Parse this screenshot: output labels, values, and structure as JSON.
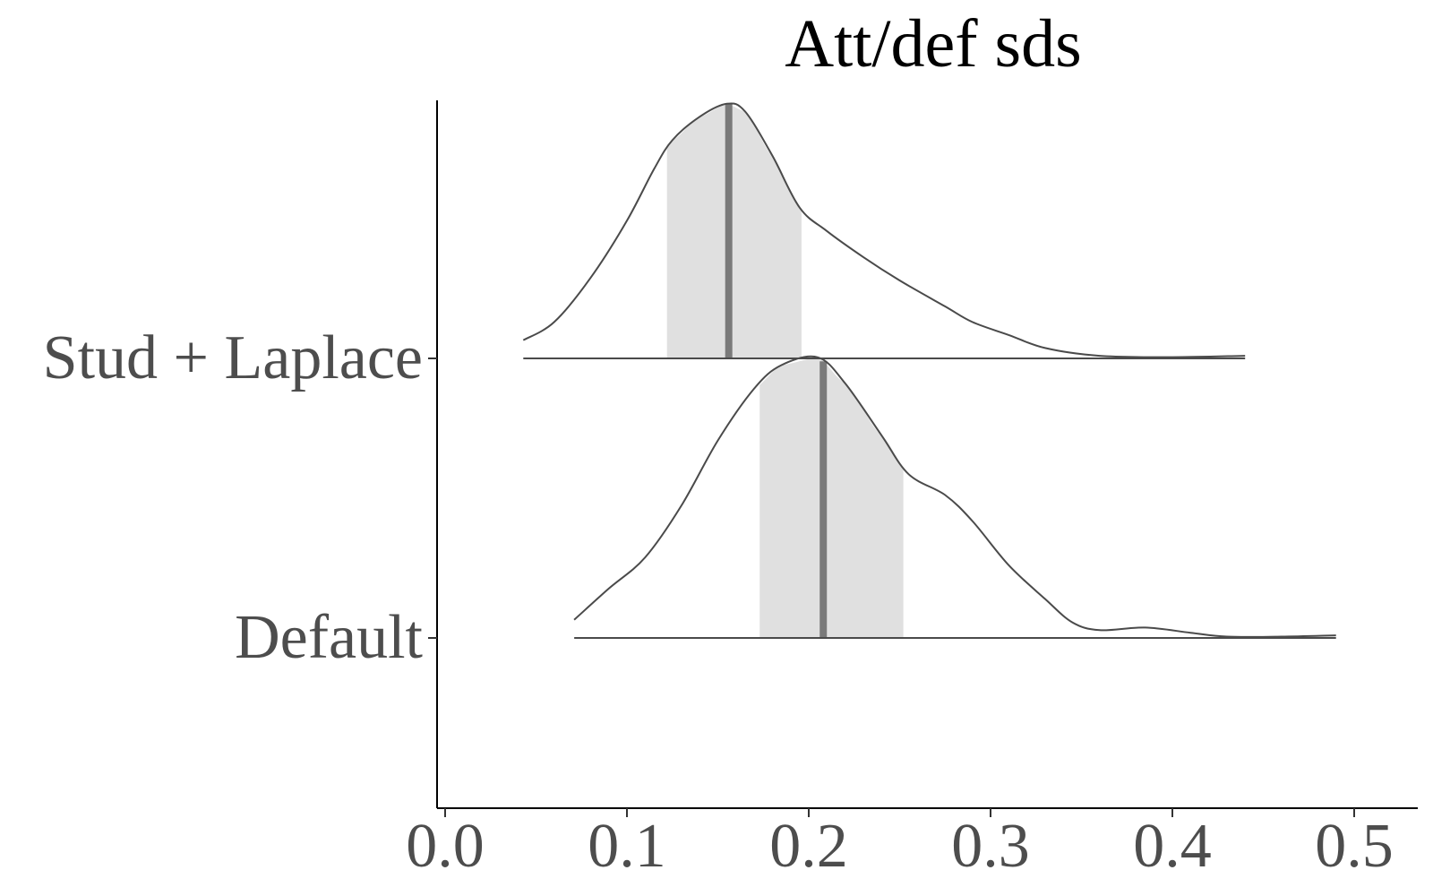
{
  "chart_data": {
    "type": "area",
    "title": "Att/def sds",
    "xlabel": "",
    "ylabel": "",
    "xlim": [
      -0.005,
      0.535
    ],
    "x_ticks": [
      0.0,
      0.1,
      0.2,
      0.3,
      0.4,
      0.5
    ],
    "x_tick_labels": [
      "0.0",
      "0.1",
      "0.2",
      "0.3",
      "0.4",
      "0.5"
    ],
    "y_categories": [
      "Stud + Laplace",
      "Default"
    ],
    "grid": false,
    "legend": "none",
    "line_color": "#4a4a4a",
    "interval_color": "#e0e0e0",
    "median_color": "#7a7a7a",
    "series": [
      {
        "category": "Stud + Laplace",
        "median": 0.156,
        "interval": [
          0.122,
          0.196
        ],
        "density": [
          [
            0.043,
            0.07
          ],
          [
            0.06,
            0.14
          ],
          [
            0.08,
            0.31
          ],
          [
            0.1,
            0.53
          ],
          [
            0.115,
            0.73
          ],
          [
            0.125,
            0.84
          ],
          [
            0.14,
            0.93
          ],
          [
            0.155,
            0.98
          ],
          [
            0.165,
            0.95
          ],
          [
            0.18,
            0.78
          ],
          [
            0.195,
            0.58
          ],
          [
            0.21,
            0.49
          ],
          [
            0.23,
            0.39
          ],
          [
            0.25,
            0.3
          ],
          [
            0.275,
            0.2
          ],
          [
            0.29,
            0.14
          ],
          [
            0.31,
            0.09
          ],
          [
            0.33,
            0.04
          ],
          [
            0.36,
            0.01
          ],
          [
            0.4,
            0.005
          ],
          [
            0.44,
            0.01
          ]
        ]
      },
      {
        "category": "Default",
        "median": 0.208,
        "interval": [
          0.173,
          0.252
        ],
        "density": [
          [
            0.071,
            0.07
          ],
          [
            0.09,
            0.19
          ],
          [
            0.11,
            0.31
          ],
          [
            0.13,
            0.51
          ],
          [
            0.15,
            0.76
          ],
          [
            0.17,
            0.96
          ],
          [
            0.185,
            1.05
          ],
          [
            0.205,
            1.08
          ],
          [
            0.22,
            0.98
          ],
          [
            0.24,
            0.78
          ],
          [
            0.255,
            0.63
          ],
          [
            0.275,
            0.55
          ],
          [
            0.29,
            0.45
          ],
          [
            0.31,
            0.28
          ],
          [
            0.33,
            0.15
          ],
          [
            0.345,
            0.06
          ],
          [
            0.36,
            0.03
          ],
          [
            0.385,
            0.04
          ],
          [
            0.41,
            0.02
          ],
          [
            0.43,
            0.005
          ],
          [
            0.46,
            0.005
          ],
          [
            0.49,
            0.01
          ]
        ]
      }
    ]
  }
}
